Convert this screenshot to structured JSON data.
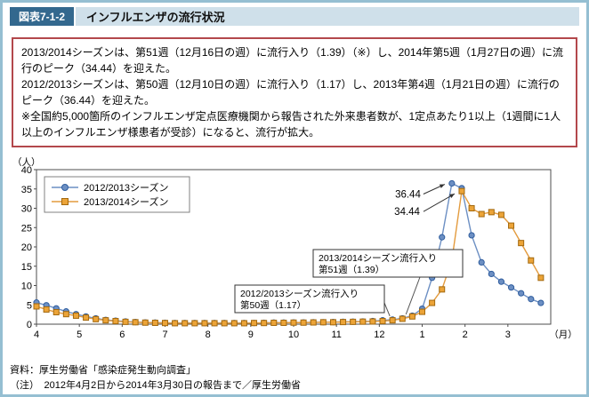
{
  "page": {
    "figure_label": "図表7-1-2",
    "title": "インフルエンザの流行状況"
  },
  "summary_box": {
    "lines": [
      "2013/2014シーズンは、第51週（12月16日の週）に流行入り（1.39）（※）し、2014年第5週（1月27日の週）に流行のピーク（34.44）を迎えた。",
      "2012/2013シーズンは、第50週（12月10日の週）に流行入り（1.17）し、2013年第4週（1月21日の週）に流行のピーク（36.44）を迎えた。",
      "※全国約5,000箇所のインフルエンザ定点医療機関から報告された外来患者数が、1定点あたり1以上（1週間に1人以上のインフルエンザ様患者が受診）になると、流行が拡大。"
    ]
  },
  "footer": {
    "source": "資料：厚生労働省「感染症発生動向調査」",
    "note": "（注）　2012年4月2日から2014年3月30日の報告まで／厚生労働省"
  },
  "colors": {
    "page_border": "#95bfd2",
    "figure_badge_bg": "#33688e",
    "title_band_bg": "#cfe0ea",
    "summary_border": "#b3484c"
  },
  "chart_data": {
    "type": "line",
    "y_axis_label": "（人）",
    "x_axis_unit": "（月）",
    "ylim": [
      0,
      40
    ],
    "y_ticks": [
      0,
      5,
      10,
      15,
      20,
      25,
      30,
      35,
      40
    ],
    "month_labels": [
      "4",
      "5",
      "6",
      "7",
      "8",
      "9",
      "10",
      "11",
      "12",
      "1",
      "2",
      "3"
    ],
    "weeks_per_series": 52,
    "legend_position": "top-left",
    "grid": false,
    "series": [
      {
        "name": "2012/2013シーズン",
        "marker": "circle",
        "line_color": "#6c8fc3",
        "marker_fill": "#6c8fc3",
        "marker_edge": "#2f5d9e",
        "values": [
          5.6,
          4.9,
          4.1,
          3.3,
          2.6,
          2.0,
          1.5,
          1.1,
          0.9,
          0.7,
          0.55,
          0.45,
          0.4,
          0.35,
          0.3,
          0.3,
          0.3,
          0.3,
          0.3,
          0.3,
          0.3,
          0.3,
          0.3,
          0.35,
          0.4,
          0.4,
          0.45,
          0.45,
          0.5,
          0.5,
          0.55,
          0.6,
          0.65,
          0.7,
          0.8,
          1.0,
          1.17,
          1.5,
          2.2,
          4.0,
          12.0,
          22.5,
          36.44,
          35.2,
          23.0,
          16.0,
          13.0,
          11.0,
          9.5,
          8.0,
          6.5,
          5.5
        ]
      },
      {
        "name": "2013/2014シーズン",
        "marker": "square",
        "line_color": "#e39b3e",
        "marker_fill": "#eca438",
        "marker_edge": "#a3690f",
        "values": [
          4.6,
          3.8,
          3.1,
          2.6,
          2.2,
          1.7,
          1.3,
          1.0,
          0.8,
          0.6,
          0.5,
          0.4,
          0.35,
          0.3,
          0.25,
          0.25,
          0.25,
          0.25,
          0.25,
          0.25,
          0.25,
          0.25,
          0.3,
          0.3,
          0.35,
          0.35,
          0.4,
          0.4,
          0.45,
          0.5,
          0.5,
          0.55,
          0.6,
          0.65,
          0.7,
          0.8,
          1.0,
          1.39,
          2.0,
          3.2,
          5.5,
          9.0,
          16.5,
          34.44,
          30.0,
          28.5,
          29.0,
          28.3,
          25.5,
          21.0,
          16.5,
          12.0
        ]
      }
    ],
    "peak_annotations": [
      {
        "label": "36.44",
        "series": 0,
        "week": 42
      },
      {
        "label": "34.44",
        "series": 1,
        "week": 43
      }
    ],
    "callouts": [
      {
        "lines": [
          "2013/2014シーズン流行入り",
          "第51週（1.39）"
        ],
        "series": 1,
        "week": 37
      },
      {
        "lines": [
          "2012/2013シーズン流行入り",
          "第50週（1.17）"
        ],
        "series": 0,
        "week": 36
      }
    ]
  }
}
